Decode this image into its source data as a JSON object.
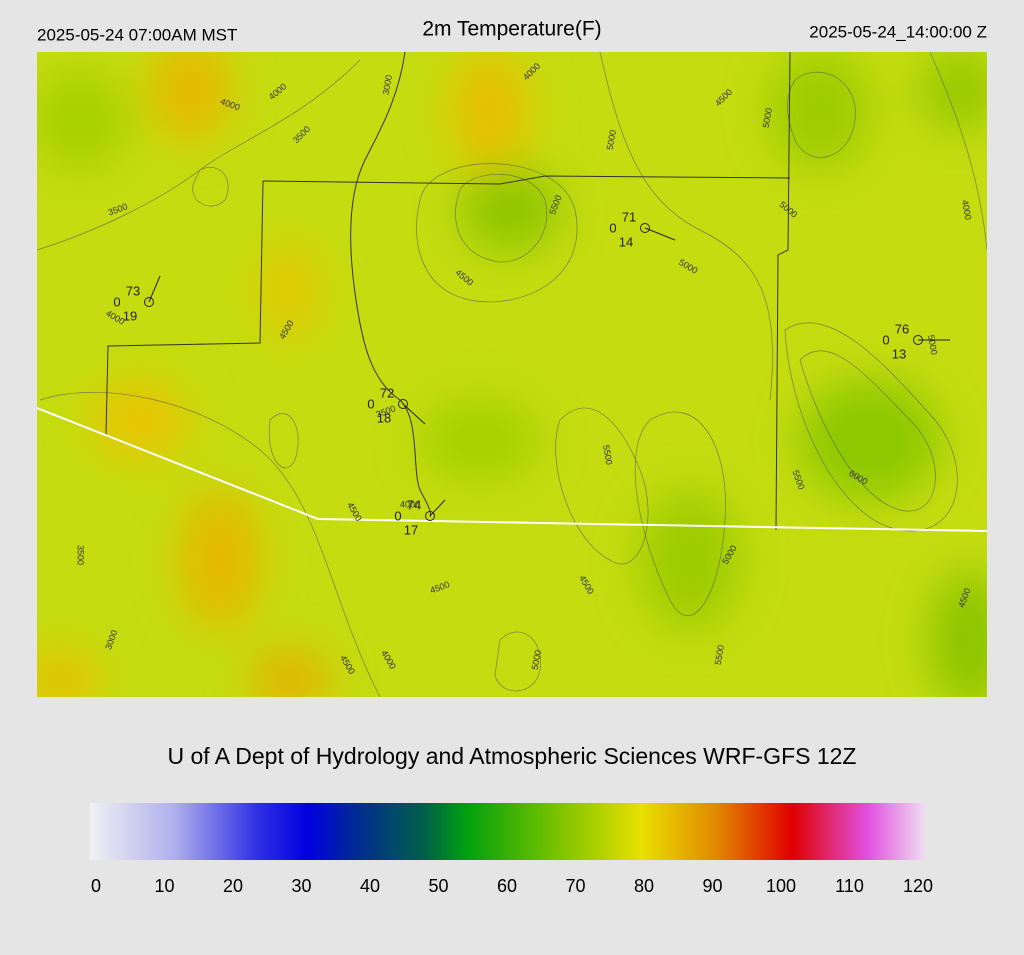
{
  "header": {
    "left": "2025-05-24 07:00AM MST",
    "title": "2m Temperature(F)",
    "right": "2025-05-24_14:00:00 Z"
  },
  "contour_labels": [
    "4000",
    "4000",
    "3500",
    "3000",
    "4000",
    "5000",
    "4500",
    "5000",
    "3500",
    "5500",
    "5000",
    "4000",
    "5000",
    "4500",
    "4000",
    "4500",
    "5000",
    "3500",
    "5500",
    "5500",
    "6000",
    "4500",
    "4000",
    "3500",
    "5000",
    "4500",
    "4500",
    "4500",
    "3000",
    "4000",
    "4500",
    "5000",
    "5500"
  ],
  "stations": [
    {
      "temp": 73,
      "zero": 0,
      "dew": 19
    },
    {
      "temp": 71,
      "zero": 0,
      "dew": 14
    },
    {
      "temp": 76,
      "zero": 0,
      "dew": 13
    },
    {
      "temp": 72,
      "zero": 0,
      "dew": 18
    },
    {
      "temp": 74,
      "zero": 0,
      "dew": 17
    }
  ],
  "footer": {
    "credit": "U of A Dept of Hydrology and Atmospheric Sciences WRF-GFS 12Z"
  },
  "colorbar": {
    "lim": [
      0,
      120
    ],
    "ticks": [
      0,
      10,
      20,
      30,
      40,
      50,
      60,
      70,
      80,
      90,
      100,
      110,
      120
    ]
  }
}
